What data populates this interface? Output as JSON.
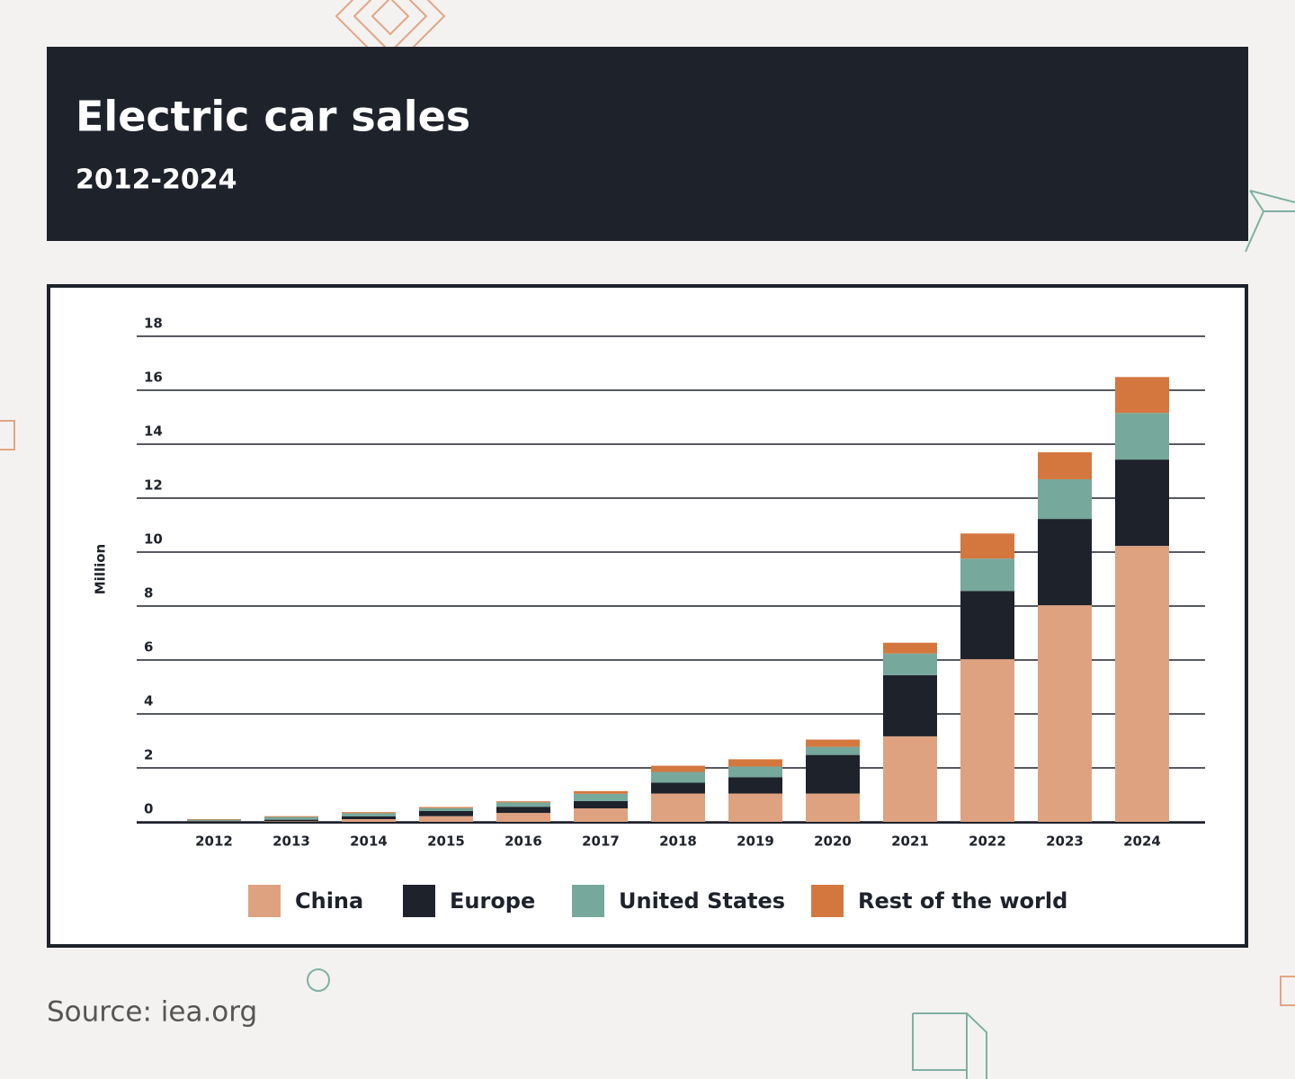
{
  "title": "Electric car sales",
  "subtitle": "2012-2024",
  "source": "Source: iea.org",
  "chart_data": {
    "type": "stacked_bar",
    "y_label": "Million",
    "categories": [
      "2012",
      "2013",
      "2014",
      "2015",
      "2016",
      "2017",
      "2018",
      "2019",
      "2020",
      "2021",
      "2022",
      "2023",
      "2024"
    ],
    "series": [
      {
        "name": "China",
        "color": "#dea281",
        "values": [
          0.01,
          0.02,
          0.1,
          0.21,
          0.33,
          0.5,
          1.05,
          1.05,
          1.05,
          3.17,
          6.03,
          8.03,
          10.23
        ]
      },
      {
        "name": "Europe",
        "color": "#1e222b",
        "values": [
          0.02,
          0.06,
          0.1,
          0.19,
          0.23,
          0.27,
          0.4,
          0.6,
          1.43,
          2.27,
          2.53,
          3.2,
          3.2
        ]
      },
      {
        "name": "United States",
        "color": "#76a89c",
        "values": [
          0.05,
          0.1,
          0.12,
          0.11,
          0.16,
          0.27,
          0.4,
          0.4,
          0.3,
          0.8,
          1.2,
          1.47,
          1.73
        ]
      },
      {
        "name": "Rest of the world",
        "color": "#d4773f",
        "values": [
          0.02,
          0.03,
          0.04,
          0.04,
          0.04,
          0.1,
          0.23,
          0.27,
          0.27,
          0.4,
          0.93,
          1.0,
          1.33
        ]
      }
    ],
    "ylim": [
      0,
      18
    ],
    "yticks": [
      0,
      2,
      4,
      6,
      8,
      10,
      12,
      14,
      16,
      18
    ],
    "grid": true,
    "legend": "bottom"
  }
}
